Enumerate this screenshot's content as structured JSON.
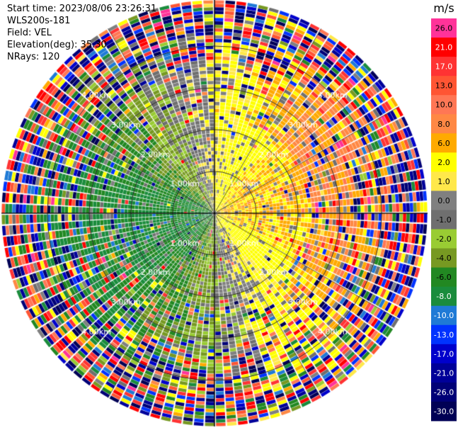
{
  "header": {
    "start_time": "Start time: 2023/08/06 23:26:31",
    "instrument": "WLS200s-181",
    "field": "Field: VEL",
    "elevation": "Elevation(deg): 35.30",
    "nrays": "NRays: 120"
  },
  "chart_data": {
    "type": "heatmap",
    "projection": "polar-ppi",
    "field": "VEL",
    "units": "m/s",
    "n_rays": 120,
    "elevation_deg": 35.3,
    "range_rings_km": [
      1.0,
      2.0,
      3.0,
      4.0
    ],
    "range_ring_labels": [
      "1.00km",
      "2.00km",
      "3.00km",
      "4.00km"
    ],
    "colorbar": {
      "title": "m/s",
      "ticks": [
        "26.0",
        "21.0",
        "17.0",
        "13.0",
        "10.0",
        "8.0",
        "6.0",
        "2.0",
        "1.0",
        "0.0",
        "-1.0",
        "-2.0",
        "-4.0",
        "-6.0",
        "-8.0",
        "-10.0",
        "-13.0",
        "-17.0",
        "-21.0",
        "-26.0",
        "-30.0"
      ],
      "colors": [
        "#ff3399",
        "#ff0000",
        "#ff3333",
        "#ff5533",
        "#ff7755",
        "#ff8844",
        "#ffaa00",
        "#ffff00",
        "#ffe84a",
        "#808080",
        "#6f6f6f",
        "#99cc33",
        "#779922",
        "#228822",
        "#1a8c3c",
        "#1f7ad6",
        "#0033ff",
        "#0000cc",
        "#000099",
        "#000077",
        "#000055"
      ]
    },
    "pattern_summary": {
      "near_field_east": "positive 2 to 10 m/s (yellow/orange)",
      "near_field_west": "negative -2 to -8 m/s (green)",
      "far_field": "noisy, all values"
    }
  }
}
